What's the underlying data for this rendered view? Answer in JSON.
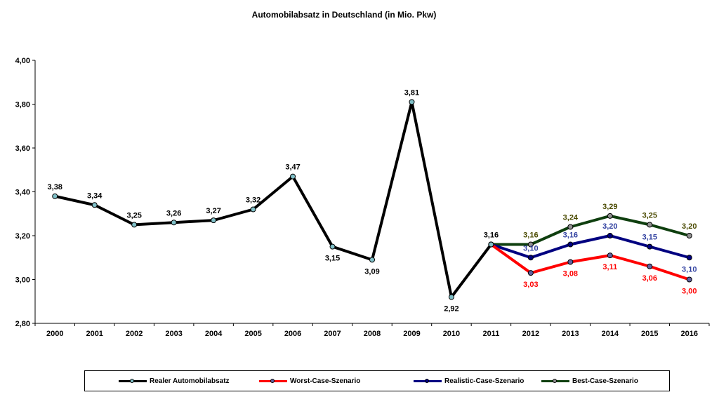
{
  "chart_data": {
    "type": "line",
    "title": "Automobilabsatz in Deutschland (in Mio. Pkw)",
    "xlabel": "",
    "ylabel": "",
    "ylim": [
      2.8,
      4.0
    ],
    "yticks": [
      "2,80",
      "3,00",
      "3,20",
      "3,40",
      "3,60",
      "3,80",
      "4,00"
    ],
    "categories": [
      "2000",
      "2001",
      "2002",
      "2003",
      "2004",
      "2005",
      "2006",
      "2007",
      "2008",
      "2009",
      "2010",
      "2011",
      "2012",
      "2013",
      "2014",
      "2015",
      "2016"
    ],
    "grid": false,
    "legend_position": "bottom",
    "series": [
      {
        "name": "Realer Automobilabsatz",
        "color": "#000000",
        "marker_color": "#80c0c8",
        "label_color": "#000000",
        "x": [
          "2000",
          "2001",
          "2002",
          "2003",
          "2004",
          "2005",
          "2006",
          "2007",
          "2008",
          "2009",
          "2010",
          "2011"
        ],
        "values": [
          3.38,
          3.34,
          3.25,
          3.26,
          3.27,
          3.32,
          3.47,
          3.15,
          3.09,
          3.81,
          2.92,
          3.16
        ],
        "labels": [
          "3,38",
          "3,34",
          "3,25",
          "3,26",
          "3,27",
          "3,32",
          "3,47",
          "3,15",
          "3,09",
          "3,81",
          "2,92",
          "3,16"
        ],
        "label_pos": [
          "above",
          "above",
          "above",
          "above",
          "above",
          "above",
          "above",
          "below",
          "below",
          "above",
          "below",
          "above"
        ]
      },
      {
        "name": "Worst-Case-Szenario",
        "color": "#ff0000",
        "marker_color": "#6060a0",
        "label_color": "#ff0000",
        "x": [
          "2011",
          "2012",
          "2013",
          "2014",
          "2015",
          "2016"
        ],
        "values": [
          3.16,
          3.03,
          3.08,
          3.11,
          3.06,
          3.0
        ],
        "labels": [
          "",
          "3,03",
          "3,08",
          "3,11",
          "3,06",
          "3,00"
        ],
        "label_pos": [
          "none",
          "below",
          "below",
          "below",
          "below",
          "below"
        ]
      },
      {
        "name": "Realistic-Case-Szenario",
        "color": "#000080",
        "marker_color": "#000080",
        "label_color": "#3040a0",
        "x": [
          "2011",
          "2012",
          "2013",
          "2014",
          "2015",
          "2016"
        ],
        "values": [
          3.16,
          3.1,
          3.16,
          3.2,
          3.15,
          3.1
        ],
        "labels": [
          "",
          "3,10",
          "3,16",
          "3,20",
          "3,15",
          "3,10"
        ],
        "label_pos": [
          "none",
          "above",
          "above",
          "above",
          "above",
          "below"
        ]
      },
      {
        "name": "Best-Case-Szenario",
        "color": "#0f3f0f",
        "marker_color": "#909090",
        "label_color": "#4a4a00",
        "x": [
          "2011",
          "2012",
          "2013",
          "2014",
          "2015",
          "2016"
        ],
        "values": [
          3.16,
          3.16,
          3.24,
          3.29,
          3.25,
          3.2
        ],
        "labels": [
          "",
          "3,16",
          "3,24",
          "3,29",
          "3,25",
          "3,20"
        ],
        "label_pos": [
          "none",
          "above",
          "above",
          "above",
          "above",
          "above"
        ]
      }
    ]
  }
}
